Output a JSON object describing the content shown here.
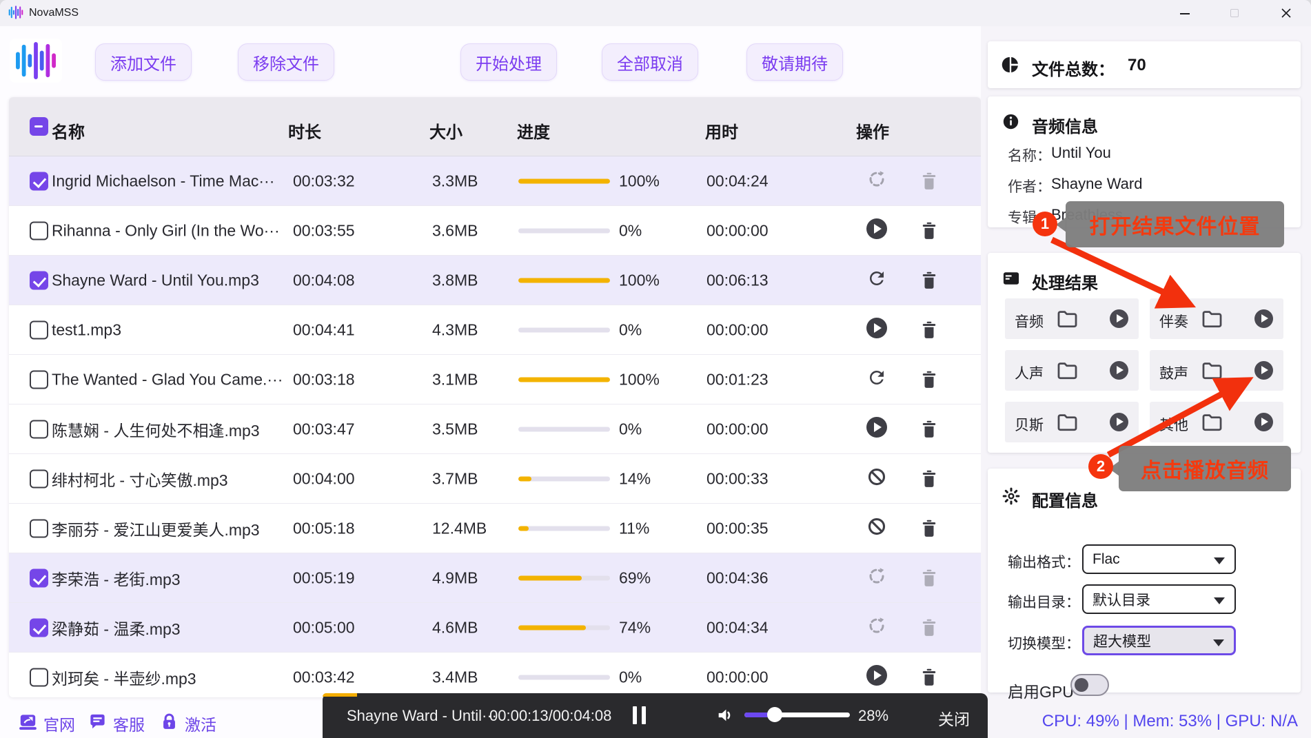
{
  "window": {
    "title": "NovaMSS"
  },
  "toolbar": {
    "buttons": [
      "添加文件",
      "移除文件",
      "开始处理",
      "全部取消",
      "敬请期待"
    ]
  },
  "table": {
    "headers": {
      "name": "名称",
      "duration": "时长",
      "size": "大小",
      "progress": "进度",
      "elapsed": "用时",
      "actions": "操作"
    },
    "rows": [
      {
        "checked": true,
        "name": "Ingrid Michaelson - Time Mac···",
        "duration": "00:03:32",
        "size": "3.3MB",
        "progress": 100,
        "progress_label": "100%",
        "elapsed": "00:04:24",
        "action": "loading",
        "disabled": true
      },
      {
        "checked": false,
        "name": "Rihanna - Only Girl (In the Wo···",
        "duration": "00:03:55",
        "size": "3.6MB",
        "progress": 0,
        "progress_label": "0%",
        "elapsed": "00:00:00",
        "action": "play",
        "disabled": false
      },
      {
        "checked": true,
        "name": "Shayne Ward - Until You.mp3",
        "duration": "00:04:08",
        "size": "3.8MB",
        "progress": 100,
        "progress_label": "100%",
        "elapsed": "00:06:13",
        "action": "redo",
        "disabled": false
      },
      {
        "checked": false,
        "name": "test1.mp3",
        "duration": "00:04:41",
        "size": "4.3MB",
        "progress": 0,
        "progress_label": "0%",
        "elapsed": "00:00:00",
        "action": "play",
        "disabled": false
      },
      {
        "checked": false,
        "name": "The Wanted - Glad You Came.···",
        "duration": "00:03:18",
        "size": "3.1MB",
        "progress": 100,
        "progress_label": "100%",
        "elapsed": "00:01:23",
        "action": "redo",
        "disabled": false
      },
      {
        "checked": false,
        "name": "陈慧娴 - 人生何处不相逢.mp3",
        "duration": "00:03:47",
        "size": "3.5MB",
        "progress": 0,
        "progress_label": "0%",
        "elapsed": "00:00:00",
        "action": "play",
        "disabled": false
      },
      {
        "checked": false,
        "name": "绯村柯北 - 寸心笑傲.mp3",
        "duration": "00:04:00",
        "size": "3.7MB",
        "progress": 14,
        "progress_label": "14%",
        "elapsed": "00:00:33",
        "action": "cancel",
        "disabled": false
      },
      {
        "checked": false,
        "name": "李丽芬 - 爱江山更爱美人.mp3",
        "duration": "00:05:18",
        "size": "12.4MB",
        "progress": 11,
        "progress_label": "11%",
        "elapsed": "00:00:35",
        "action": "cancel",
        "disabled": false
      },
      {
        "checked": true,
        "name": "李荣浩 - 老街.mp3",
        "duration": "00:05:19",
        "size": "4.9MB",
        "progress": 69,
        "progress_label": "69%",
        "elapsed": "00:04:36",
        "action": "loading",
        "disabled": true
      },
      {
        "checked": true,
        "name": "梁静茹 - 温柔.mp3",
        "duration": "00:05:00",
        "size": "4.6MB",
        "progress": 74,
        "progress_label": "74%",
        "elapsed": "00:04:34",
        "action": "loading",
        "disabled": true
      },
      {
        "checked": false,
        "name": "刘珂矣 - 半壶纱.mp3",
        "duration": "00:03:42",
        "size": "3.4MB",
        "progress": 0,
        "progress_label": "0%",
        "elapsed": "00:00:00",
        "action": "play",
        "disabled": false
      }
    ]
  },
  "sidebar": {
    "total_files": {
      "label": "文件总数：",
      "value": "70"
    },
    "audio_info": {
      "title": "音频信息",
      "fields": [
        {
          "label": "名称：",
          "value": "Until You"
        },
        {
          "label": "作者：",
          "value": "Shayne Ward"
        },
        {
          "label": "专辑：",
          "value": "Breathless"
        }
      ]
    },
    "results": {
      "title": "处理结果",
      "items": [
        "音频",
        "伴奏",
        "人声",
        "鼓声",
        "贝斯",
        "其他"
      ]
    },
    "config": {
      "title": "配置信息",
      "output_format_label": "输出格式：",
      "output_format": "Flac",
      "output_dir_label": "输出目录：",
      "output_dir": "默认目录",
      "model_label": "切换模型：",
      "model": "超大模型",
      "gpu_label": "启用GPU"
    },
    "stats": "CPU: 49% | Mem: 53% | GPU: N/A"
  },
  "footer": {
    "links": [
      {
        "label": "官网"
      },
      {
        "label": "客服"
      },
      {
        "label": "激活"
      }
    ]
  },
  "player": {
    "track": "Shayne Ward - Until···",
    "time": "00:00:13/00:04:08",
    "volume": "28%",
    "volume_pct": 28,
    "progress_pct": 5.2,
    "close": "关闭"
  },
  "annotations": [
    {
      "number": "1",
      "text": "打开结果文件位置"
    },
    {
      "number": "2",
      "text": "点击播放音频"
    }
  ],
  "colors": {
    "accent": "#7546e8",
    "progress": "#f3b300",
    "annotation": "#f2300d",
    "stats": "#5345ee"
  }
}
